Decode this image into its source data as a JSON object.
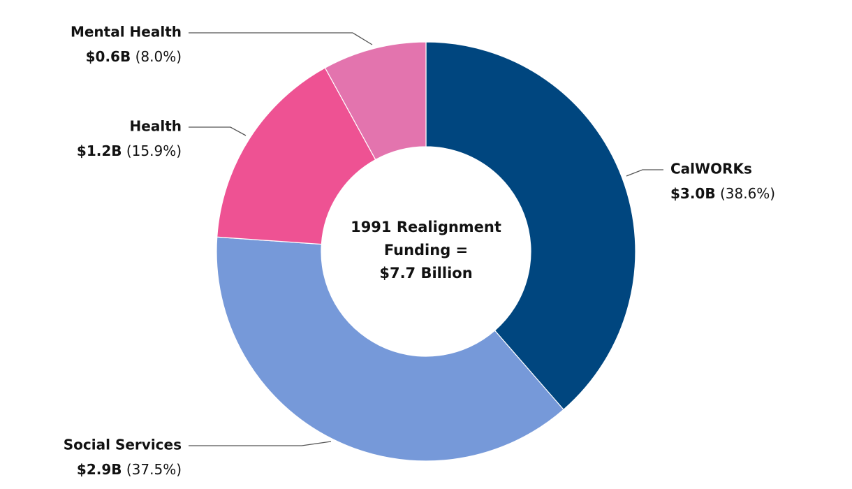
{
  "chart_data": {
    "type": "donut",
    "center_label": [
      "1991 Realignment",
      "Funding =",
      "$7.7 Billion"
    ],
    "categories": [
      "CalWORKs",
      "Social Services",
      "Health",
      "Mental Health"
    ],
    "values": [
      38.6,
      37.5,
      15.9,
      8.0
    ],
    "value_labels": [
      "(38.6%)",
      "(37.5%)",
      "(15.9%)",
      "(8.0%)"
    ],
    "amounts": [
      3.0,
      2.9,
      1.2,
      0.6
    ],
    "amount_labels": [
      "$3.0B",
      "$2.9B",
      "$1.2B",
      "$0.6B"
    ],
    "colors": [
      "#00467f",
      "#7699d9",
      "#ee5293",
      "#e374ae"
    ]
  }
}
